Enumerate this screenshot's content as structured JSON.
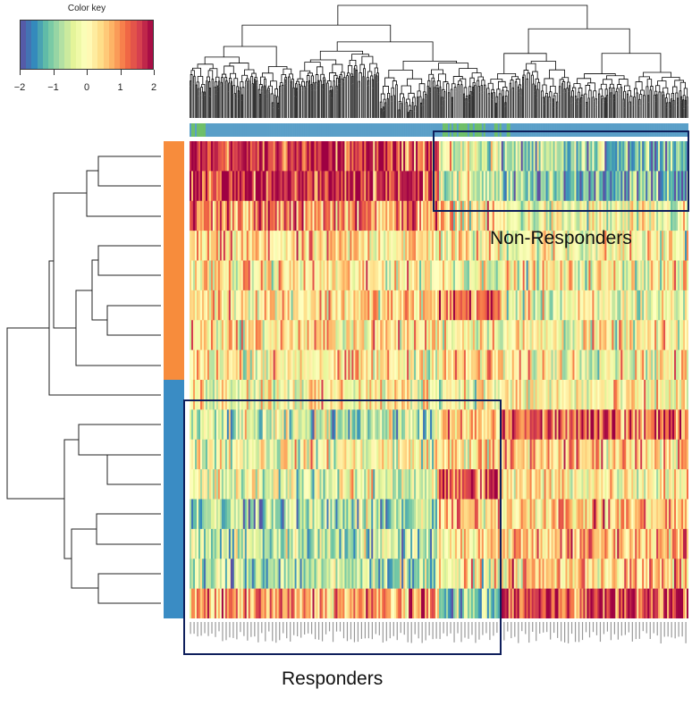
{
  "chart_data": {
    "type": "heatmap",
    "color_key": {
      "title": "Color key",
      "range": [
        -2,
        2
      ],
      "ticks": [
        "−2",
        "−1",
        "0",
        "1",
        "2"
      ],
      "palette": [
        "#5e4fa2",
        "#3288bd",
        "#66c2a5",
        "#abdda4",
        "#e6f598",
        "#ffffbf",
        "#fee08b",
        "#fdae61",
        "#f46d43",
        "#d53e4f",
        "#9e0142"
      ]
    },
    "rows": 16,
    "columns": 280,
    "row_side_groups": [
      {
        "color": "#f78c3c",
        "rows": 8
      },
      {
        "color": "#3a8cc4",
        "rows": 8
      }
    ],
    "column_side_colors": [
      "#6fbf6a",
      "#5a9fc8"
    ],
    "row_pattern_means": {
      "segments": [
        "left",
        "middle",
        "right"
      ],
      "values": [
        [
          1.6,
          -0.3,
          -1.0
        ],
        [
          1.7,
          -0.4,
          -1.2
        ],
        [
          1.0,
          0.2,
          -0.3
        ],
        [
          0.3,
          0.1,
          0.0
        ],
        [
          0.2,
          0.0,
          0.0
        ],
        [
          0.4,
          1.2,
          -0.2
        ],
        [
          0.3,
          0.2,
          0.0
        ],
        [
          0.2,
          0.4,
          0.1
        ],
        [
          0.1,
          0.1,
          0.0
        ],
        [
          -0.6,
          0.4,
          1.3
        ],
        [
          0.0,
          0.3,
          0.6
        ],
        [
          -0.3,
          1.3,
          0.2
        ],
        [
          -0.8,
          0.5,
          0.6
        ],
        [
          -0.6,
          0.3,
          0.7
        ],
        [
          -0.7,
          0.0,
          0.5
        ],
        [
          0.8,
          -1.0,
          1.5
        ]
      ]
    },
    "annotations": [
      "Non-Responders",
      "Responders"
    ]
  },
  "annotation_colors": {
    "box": "#0f1f5c"
  }
}
